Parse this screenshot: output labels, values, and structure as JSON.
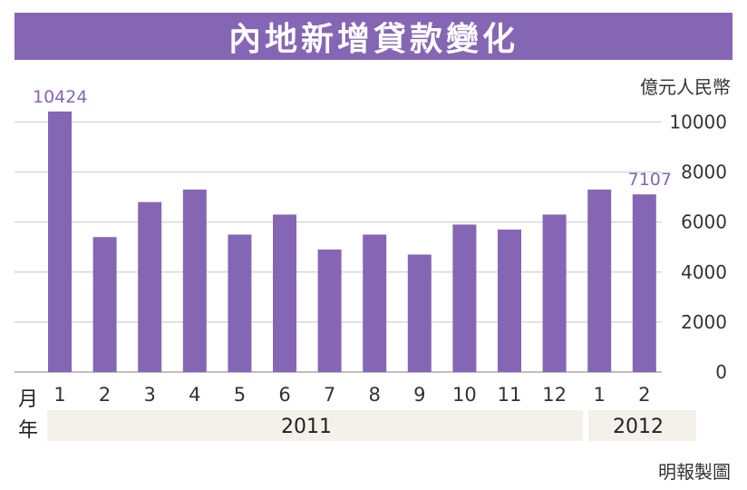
{
  "title": "內地新增貸款變化",
  "unit": "億元人民幣",
  "month_prefix": "月",
  "year_prefix": "年",
  "years": [
    "2011",
    "2012"
  ],
  "credit": "明報製圖",
  "colors": {
    "bar": "#8566b4",
    "title_bg": "#8566b4",
    "grid": "#d8d8d8",
    "year_band": "#f3f1ea"
  },
  "chart_data": {
    "type": "bar",
    "title": "內地新增貸款變化",
    "ylabel": "億元人民幣",
    "xlabel": "",
    "categories": [
      "1",
      "2",
      "3",
      "4",
      "5",
      "6",
      "7",
      "8",
      "9",
      "10",
      "11",
      "12",
      "1",
      "2"
    ],
    "category_years": [
      "2011",
      "2011",
      "2011",
      "2011",
      "2011",
      "2011",
      "2011",
      "2011",
      "2011",
      "2011",
      "2011",
      "2011",
      "2012",
      "2012"
    ],
    "values": [
      10424,
      5400,
      6800,
      7300,
      5500,
      6300,
      4900,
      5500,
      4700,
      5900,
      5700,
      6300,
      7300,
      7107
    ],
    "data_labels": [
      {
        "index": 0,
        "text": "10424"
      },
      {
        "index": 13,
        "text": "7107"
      }
    ],
    "yticks": [
      0,
      2000,
      4000,
      6000,
      8000,
      10000
    ],
    "ylim": [
      0,
      10600
    ],
    "grid": true,
    "legend": "none"
  }
}
